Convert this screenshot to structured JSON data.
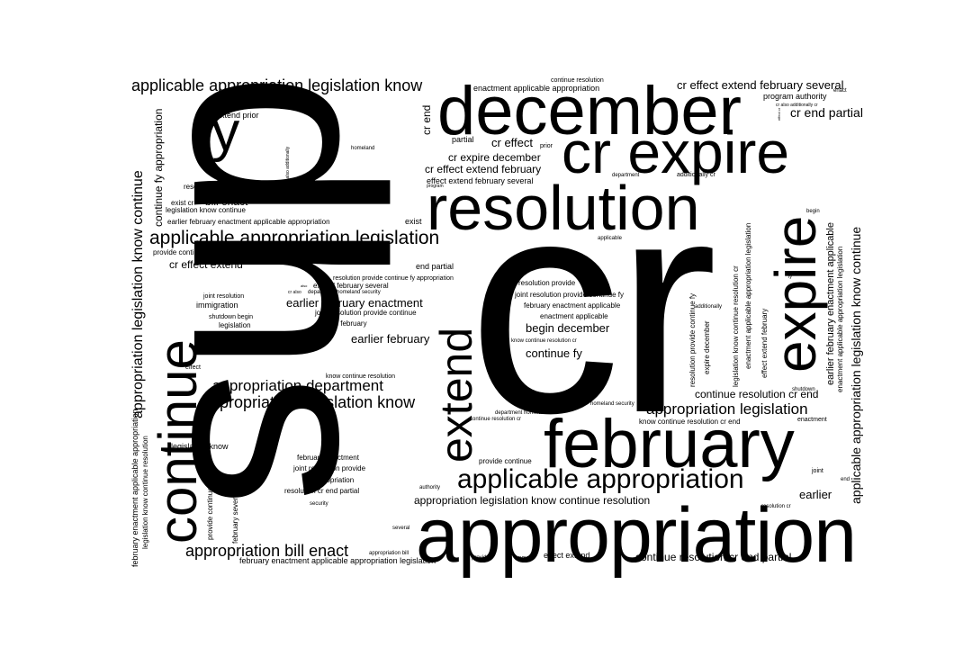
{
  "colors": {
    "background": "#ffffff",
    "text": "#000000"
  },
  "words": {
    "cr": "cr",
    "dhs": "dhs",
    "appropriation": "appropriation",
    "december": "december",
    "cr_expire": "cr expire",
    "february": "february",
    "resolution": "resolution",
    "expire": "expire",
    "continue": "continue",
    "extend": "extend",
    "fy": "fy",
    "applicable_appropriation": "applicable appropriation",
    "applicable_appropriation_legislation": "applicable appropriation legislation",
    "appropriation_legislation": "appropriation legislation",
    "appropriation_legislation_know": "appropriation legislation know",
    "appropriation_department": "appropriation department",
    "appropriation_bill_enact": "appropriation bill enact",
    "applicable_appropriation_legislation_know": "applicable appropriation legislation know",
    "cr_effect_extend_february_several": "cr effect extend february several",
    "cr_end_partial": "cr end partial",
    "cr_effect": "cr effect",
    "cr_expire_december": "cr expire december",
    "cr_effect_extend_february": "cr effect extend february",
    "effect_extend_february_several": "effect extend february several",
    "earlier_february_enactment": "earlier february enactment",
    "earlier_february": "earlier february",
    "earlier": "earlier",
    "begin_december": "begin december",
    "continue_fy": "continue fy",
    "continue_resolution_cr_end": "continue resolution cr end",
    "continue_resolution_cr_end_partial": "continue resolution cr end partial",
    "appropriation_legislation_know_continue_resolution": "appropriation legislation know continue resolution",
    "cr_effect_extend": "cr effect extend",
    "bill_enact": "bill enact",
    "cr_end": "cr end",
    "legislation_know": "legislation know",
    "enactment_applicable_appropriation": "enactment applicable appropriation",
    "program_authority": "program authority",
    "exist_cr_expire": "exist cr expire",
    "extend_prior": "extend prior",
    "resolution_cr_end": "resolution cr end",
    "exist_cr": "exist cr",
    "legislation_know_continue": "legislation know continue",
    "earlier_february_enactment_applicable_appropriation": "earlier february enactment applicable appropriation",
    "exist": "exist",
    "provide_continue_fy_appropriation": "provide continue fy appropriation",
    "end_partial": "end partial",
    "joint_resolution": "joint resolution",
    "immigration": "immigration",
    "shutdown_begin": "shutdown begin",
    "legislation": "legislation",
    "know_continue": "know continue",
    "effect": "effect",
    "resolution_provide_continue_fy_appropriation": "resolution provide continue fy appropriation",
    "extend_february_several": "extend february several",
    "department_homeland_security": "department homeland security",
    "joint_resolution_provide_continue": "joint resolution provide continue",
    "extend_february": "extend february",
    "know_continue_resolution": "know continue resolution",
    "resolution_provide": "resolution provide",
    "joint_resolution_provide_continue_fy": "joint resolution provide continue fy",
    "february_enactment_applicable": "february enactment applicable",
    "enactment_applicable": "enactment applicable",
    "know_continue_resolution_cr": "know continue resolution cr",
    "february_enactment": "february enactment",
    "joint_resolution_provide": "joint resolution provide",
    "fy_appropriation": "fy appropriation",
    "resolution_cr_end_partial": "resolution cr end partial",
    "security": "security",
    "provide_continue": "provide continue",
    "authority": "authority",
    "department_homeland": "department homeland",
    "continue_resolution_cr": "continue resolution cr",
    "homeland_security": "homeland security",
    "know_continue_resolution_cr_end": "know continue resolution cr end",
    "enactment": "enactment",
    "joint": "joint",
    "end": "end",
    "resolution_cr": "resolution cr",
    "several": "several",
    "appropriation_bill": "appropriation bill",
    "provide": "provide",
    "know": "know",
    "effect_extend": "effect extend",
    "february_enactment_applicable_appropriation_legislation": "february enactment applicable appropriation legislation",
    "continue_resolution": "continue resolution",
    "partial": "partial",
    "prior": "prior",
    "program": "program",
    "department": "department",
    "additionally_cr": "additionally cr",
    "begin": "begin",
    "applicable": "applicable",
    "enact": "enact",
    "cr_also_additionally_cr": "cr also additionally cr",
    "homeland": "homeland",
    "cr_also": "cr also",
    "also": "also",
    "additionally": "additionally",
    "shutdown": "shutdown",
    "expire_december": "expire december",
    "resolution_provide_continue_fy": "resolution provide continue fy",
    "legislation_know_continue_resolution_cr": "legislation know continue resolution cr",
    "enactment_applicable_appropriation_legislation": "enactment applicable appropriation legislation",
    "effect_extend_february": "effect extend february",
    "earlier_february_enactment_applicable": "earlier february enactment applicable",
    "applicable_appropriation_legislation_know_continue": "applicable appropriation legislation know continue",
    "enactment_applicable_appropriation_legislation_2": "enactment applicable appropriation legislation",
    "appropriation_legislation_know_continue": "appropriation legislation know continue",
    "continue_fy_appropriation": "continue fy appropriation",
    "february_enactment_applicable_appropriation": "february enactment applicable appropriation",
    "legislation_know_continue_resolution": "legislation know continue resolution",
    "provide_continue_fy": "provide continue fy",
    "february_several": "february several",
    "cr_also_additionally": "cr also additionally",
    "effect_cr": "effect cr"
  }
}
